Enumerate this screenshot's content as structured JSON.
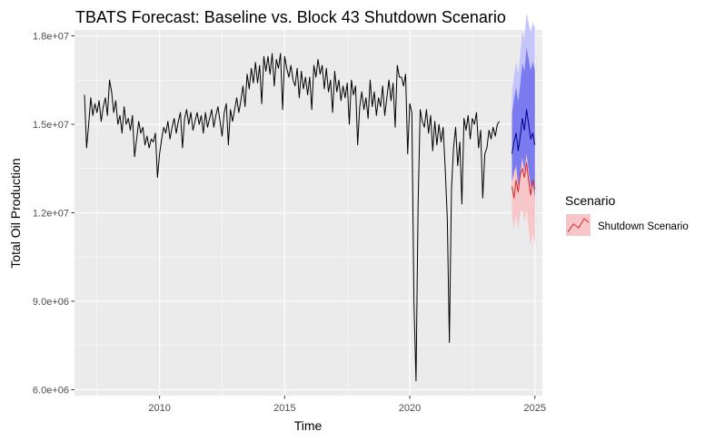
{
  "chart_data": {
    "type": "line",
    "title": "TBATS Forecast: Baseline vs. Block 43 Shutdown Scenario",
    "xlabel": "Time",
    "ylabel": "Total Oil Production",
    "xlim": [
      2006.6,
      2025.3
    ],
    "ylim": [
      5800000,
      18200000
    ],
    "x_ticks": [
      2010,
      2015,
      2020,
      2025
    ],
    "x_tick_labels": [
      "2010",
      "2015",
      "2020",
      "2025"
    ],
    "y_ticks": [
      6000000,
      9000000,
      12000000,
      15000000,
      18000000
    ],
    "y_tick_labels": [
      "6.0e+06",
      "9.0e+06",
      "1.2e+07",
      "1.5e+07",
      "1.8e+07"
    ],
    "grid": true,
    "legend": {
      "title": "Scenario",
      "position": "right",
      "entries": [
        {
          "label": "Shutdown Scenario",
          "color": "#d62728"
        }
      ]
    },
    "colors": {
      "panel": "#ebebeb",
      "grid": "#ffffff",
      "history": "#000000",
      "baseline": "#00008b",
      "baseline_ci80": "#7b7bf0",
      "baseline_ci95": "#c5c5fb",
      "shutdown": "#d62728",
      "shutdown_ci": "#f7c6c9"
    },
    "series": [
      {
        "role": "history",
        "start": 2007.0,
        "step": 0.083333,
        "values": [
          16000000,
          14200000,
          15000000,
          15900000,
          15300000,
          15700000,
          15400000,
          15800000,
          15100000,
          15600000,
          15900000,
          15300000,
          16500000,
          16100000,
          15400000,
          15800000,
          15000000,
          15300000,
          14700000,
          15600000,
          15000000,
          15200000,
          14800000,
          15300000,
          13900000,
          14500000,
          15100000,
          14700000,
          14900000,
          14300000,
          14600000,
          14200000,
          14500000,
          14400000,
          14700000,
          13200000,
          14000000,
          14500000,
          14900000,
          14700000,
          15100000,
          14500000,
          14900000,
          15200000,
          14700000,
          15100000,
          15400000,
          14200000,
          15200000,
          15500000,
          15000000,
          15400000,
          14800000,
          15100000,
          15400000,
          15000000,
          15300000,
          14700000,
          15400000,
          14900000,
          15200000,
          15500000,
          14900000,
          15300000,
          15600000,
          15100000,
          14600000,
          15400000,
          15700000,
          14300000,
          15500000,
          15100000,
          15500000,
          15900000,
          15400000,
          15800000,
          16300000,
          15600000,
          16700000,
          16200000,
          16900000,
          16400000,
          17100000,
          16400000,
          17000000,
          15700000,
          17300000,
          16800000,
          17300000,
          16700000,
          17400000,
          16300000,
          17200000,
          16900000,
          17400000,
          15500000,
          17300000,
          16900000,
          16600000,
          17000000,
          16500000,
          16300000,
          16900000,
          15900000,
          16800000,
          16200000,
          16600000,
          16000000,
          16600000,
          15500000,
          17000000,
          16600000,
          17200000,
          16700000,
          17000000,
          16200000,
          16900000,
          16100000,
          16500000,
          15400000,
          16800000,
          16100000,
          16500000,
          15800000,
          16300000,
          15900000,
          16400000,
          15000000,
          16500000,
          16000000,
          16300000,
          14300000,
          15600000,
          16100000,
          15500000,
          15900000,
          15200000,
          16500000,
          15600000,
          16100000,
          15300000,
          15900000,
          15600000,
          16300000,
          15300000,
          15900000,
          16500000,
          15800000,
          16400000,
          14900000,
          17000000,
          16600000,
          16600000,
          16300000,
          16700000,
          14000000,
          15700000,
          15400000,
          9000000,
          6300000,
          12300000,
          15500000,
          15100000,
          14900000,
          15500000,
          14700000,
          15300000,
          14100000,
          15100000,
          14300000,
          15000000,
          14400000,
          14900000,
          13500000,
          11800000,
          7600000,
          12800000,
          14200000,
          14900000,
          13600000,
          14400000,
          12300000,
          15200000,
          14800000,
          15300000,
          14500000,
          15200000,
          15000000,
          15400000,
          14200000,
          14800000,
          12500000,
          14000000,
          14200000,
          14800000,
          14500000,
          14900000,
          14600000,
          15000000,
          15100000
        ]
      },
      {
        "role": "baseline_forecast",
        "start": 2024.083333,
        "step": 0.083333,
        "values": [
          14000000,
          14400000,
          14700000,
          14100000,
          14600000,
          15200000,
          14800000,
          15500000,
          15000000,
          14500000,
          14700000,
          14300000
        ]
      },
      {
        "name": "Shutdown Scenario",
        "role": "shutdown_forecast",
        "start": 2024.083333,
        "step": 0.083333,
        "values": [
          12900000,
          12500000,
          13100000,
          12700000,
          13300000,
          13500000,
          13200000,
          13700000,
          13100000,
          12600000,
          13100000,
          12800000
        ]
      }
    ]
  }
}
